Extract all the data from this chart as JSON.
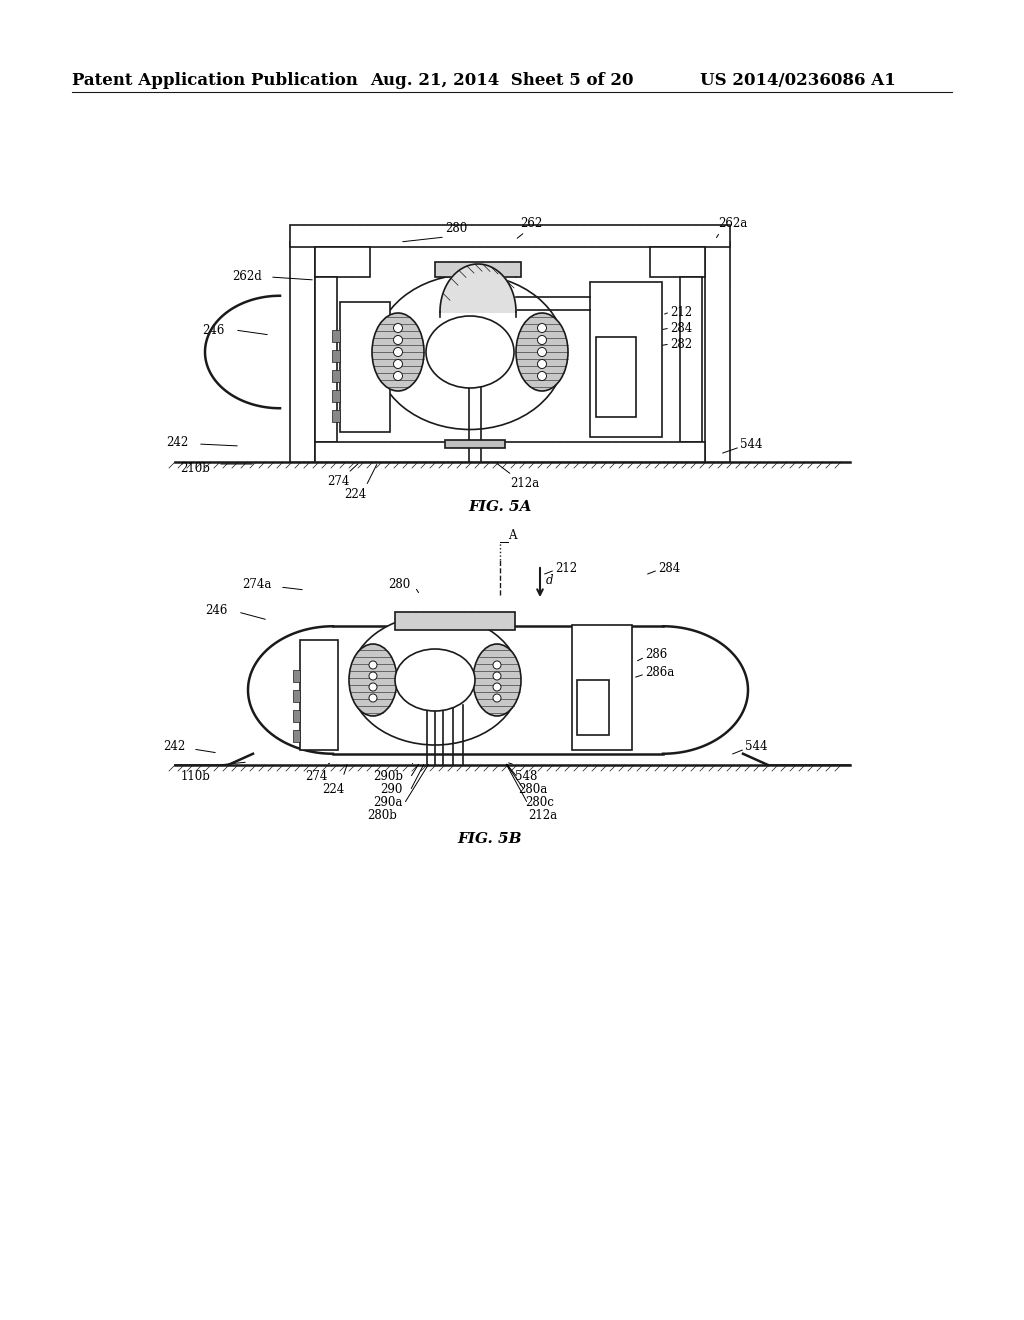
{
  "header_left": "Patent Application Publication",
  "header_mid": "Aug. 21, 2014  Sheet 5 of 20",
  "header_right": "US 2014/0236086 A1",
  "fig5a_caption": "FIG. 5A",
  "fig5b_caption": "FIG. 5B",
  "background_color": "#ffffff",
  "text_color": "#000000",
  "line_color": "#1a1a1a",
  "header_fontsize": 12,
  "label_fontsize": 8.5,
  "caption_fontsize": 11
}
